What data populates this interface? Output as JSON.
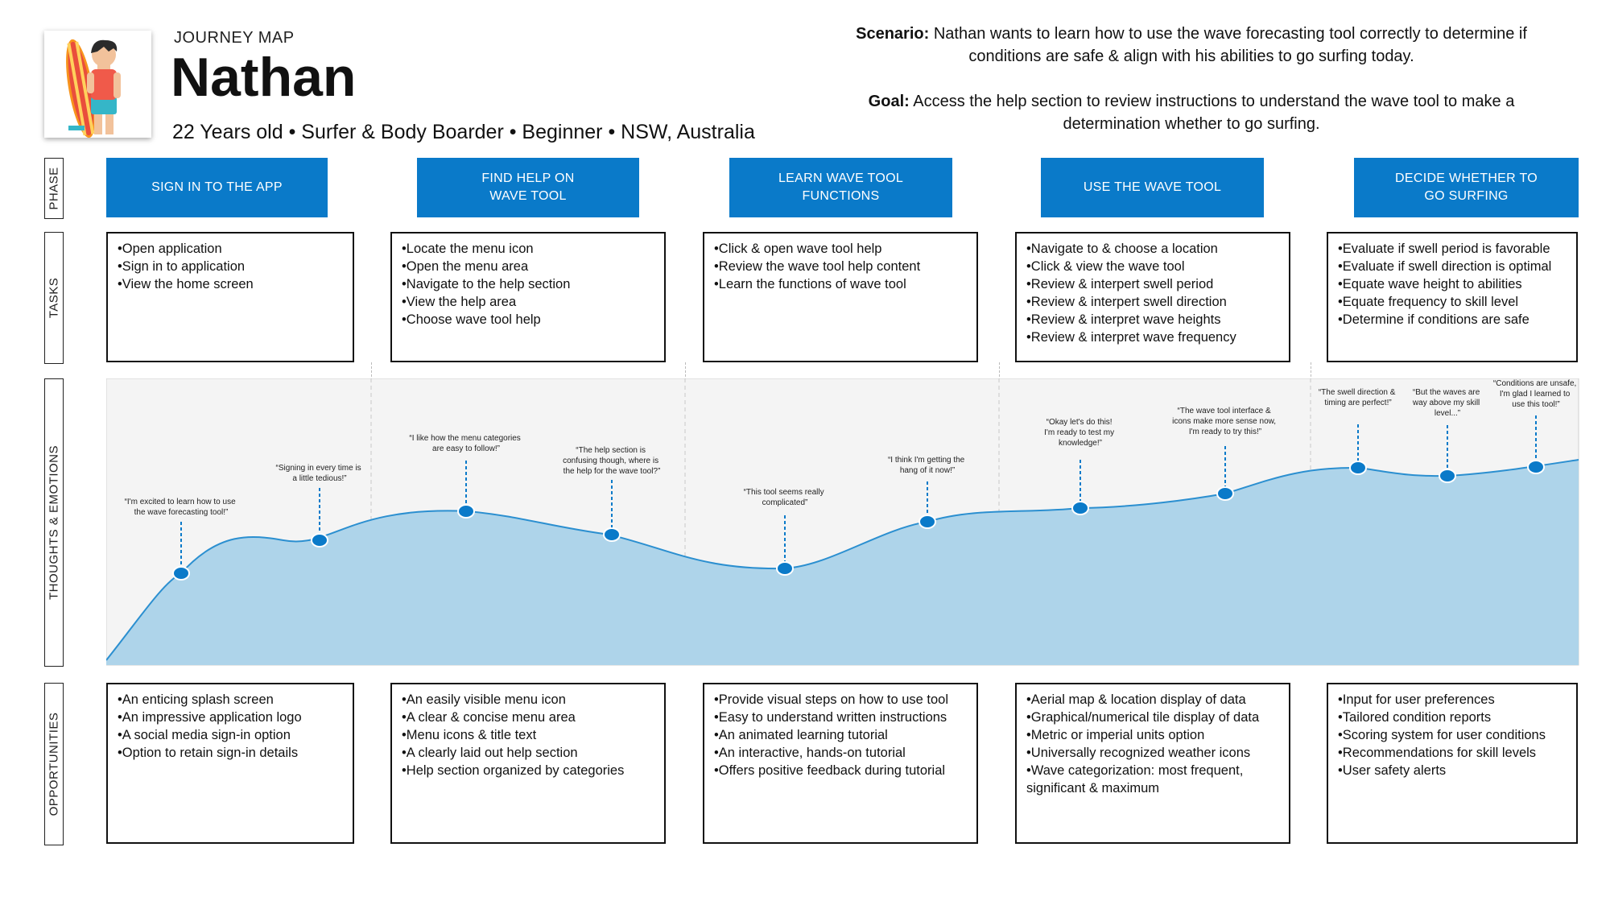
{
  "header": {
    "eyebrow": "JOURNEY MAP",
    "name": "Nathan",
    "subline": "22 Years old • Surfer & Body Boarder • Beginner •  NSW, Australia",
    "scenario_label": "Scenario:",
    "scenario_text": " Nathan wants to learn how to use the wave forecasting tool correctly to determine if conditions are safe & align with his abilities to go surfing today.",
    "goal_label": "Goal:",
    "goal_text": " Access the help section to review instructions to understand the wave tool to make a determination whether to go surfing."
  },
  "row_labels": {
    "phase": "PHASE",
    "tasks": "TASKS",
    "thoughts": "THOUGHTS & EMOTIONS",
    "opportunities": "OPPORTUNITIES"
  },
  "phases": [
    {
      "line1": "SIGN IN TO THE APP",
      "line2": ""
    },
    {
      "line1": "FIND HELP ON",
      "line2": "WAVE TOOL"
    },
    {
      "line1": "LEARN WAVE TOOL",
      "line2": "FUNCTIONS"
    },
    {
      "line1": "USE THE WAVE TOOL",
      "line2": ""
    },
    {
      "line1": "DECIDE WHETHER TO",
      "line2": "GO SURFING"
    }
  ],
  "tasks": [
    [
      "Open application",
      "Sign in to application",
      "View the home screen"
    ],
    [
      "Locate the menu icon",
      "Open the menu area",
      "Navigate to the help section",
      "View the help area",
      "Choose wave tool help"
    ],
    [
      "Click & open wave tool help",
      "Review the wave tool help content",
      "Learn the functions of wave tool"
    ],
    [
      "Navigate to & choose a location",
      "Click & view the wave tool",
      "Review & interpert swell period",
      "Review & interpert swell direction",
      "Review & interpret wave heights",
      "Review & interpret wave frequency"
    ],
    [
      "Evaluate if swell period is favorable",
      "Evaluate if swell direction is optimal",
      "Equate wave height to abilities",
      "Equate frequency to skill level",
      "Determine if conditions are safe"
    ]
  ],
  "opportunities": [
    [
      "An enticing splash screen",
      "An impressive application logo",
      "A social media sign-in option",
      "Option to retain sign-in details"
    ],
    [
      "An easily visible menu icon",
      "A clear & concise menu area",
      "Menu icons & title text",
      "A clearly laid out help section",
      "Help section organized by categories"
    ],
    [
      "Provide visual steps on how to use tool",
      "Easy to understand written instructions",
      "An animated learning tutorial",
      "An interactive, hands-on tutorial",
      "Offers positive feedback during tutorial"
    ],
    [
      "Aerial map & location display of data",
      "Graphical/numerical tile display of data",
      "Metric or imperial units option",
      "Universally recognized weather icons",
      "Wave categorization: most frequent, significant & maximum"
    ],
    [
      "Input for user preferences",
      "Tailored condition reports",
      "Scoring system for user conditions",
      "Recommendations for skill levels",
      "User safety alerts"
    ]
  ],
  "thoughts": [
    [
      "“I'm excited to learn how to use",
      "the wave forecasting tool!”"
    ],
    [
      "“Signing in every time is",
      "a little tedious!”"
    ],
    [
      "“I like how the menu categories",
      "are  easy to follow!”"
    ],
    [
      "“The help section is",
      "confusing though, where is",
      "the help for the wave tool?”"
    ],
    [
      "“This tool seems really",
      "complicated”"
    ],
    [
      "“I think I'm getting the",
      "hang of it now!”"
    ],
    [
      "“Okay let's do this!",
      "I'm ready to test my",
      "knowledge!”"
    ],
    [
      "“The wave tool interface &",
      "icons make more sense now,",
      "I'm ready to try this!”"
    ],
    [
      "“The swell direction &",
      "timing are perfect!”"
    ],
    [
      "“But the waves are",
      "way above my skill",
      "level...”"
    ],
    [
      "“Conditions are unsafe,",
      "I'm glad I learned to",
      "use this tool!”"
    ]
  ],
  "colors": {
    "phase_blue": "#0a7ac9",
    "emotion_fill": "#aed4ea",
    "emotion_line": "#2b8fd0",
    "point": "#0a7ac9",
    "panel_bg": "#f4f4f4"
  },
  "icons": {
    "avatar": "surfer-avatar-icon"
  }
}
